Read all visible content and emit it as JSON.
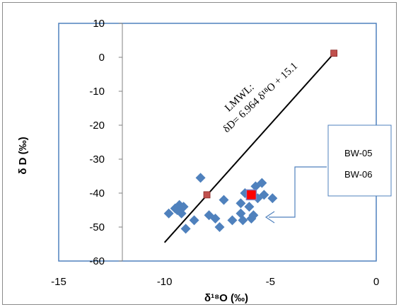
{
  "chart_data": {
    "type": "scatter",
    "title": "",
    "xlabel": "δ¹⁸O (‰)",
    "ylabel": "δ D (‰)",
    "xlim": [
      -15,
      0
    ],
    "ylim": [
      -60,
      10
    ],
    "x_ticks": [
      "-15",
      "-10",
      "-5",
      "0"
    ],
    "y_ticks": [
      "10",
      "0",
      "-10",
      "-20",
      "-30",
      "-40",
      "-50",
      "-60"
    ],
    "grid": false,
    "series": [
      {
        "marker": "diamond",
        "color": "#4f81bd",
        "points": [
          [
            -9.8,
            -46
          ],
          [
            -9.5,
            -44.5
          ],
          [
            -9.4,
            -45
          ],
          [
            -9.3,
            -43.5
          ],
          [
            -9.2,
            -46
          ],
          [
            -9.1,
            -44
          ],
          [
            -9.0,
            -50.5
          ],
          [
            -8.6,
            -48
          ],
          [
            -8.3,
            -35.5
          ],
          [
            -7.9,
            -46.5
          ],
          [
            -7.6,
            -47.5
          ],
          [
            -7.4,
            -50
          ],
          [
            -7.2,
            -42
          ],
          [
            -6.8,
            -48
          ],
          [
            -6.4,
            -43
          ],
          [
            -6.4,
            -46
          ],
          [
            -6.3,
            -48
          ],
          [
            -6.2,
            -40
          ],
          [
            -6.0,
            -44
          ],
          [
            -5.9,
            -47.5
          ],
          [
            -5.8,
            -46.5
          ],
          [
            -5.7,
            -38
          ],
          [
            -5.6,
            -41.5
          ],
          [
            -5.4,
            -37
          ],
          [
            -5.3,
            -40.5
          ],
          [
            -4.9,
            -41.5
          ]
        ]
      },
      {
        "name": "BW-05",
        "marker": "square",
        "color": "#c0504d",
        "points": [
          [
            -8.0,
            -40.5
          ],
          [
            -2.0,
            1.2
          ]
        ]
      },
      {
        "name": "BW-06",
        "marker": "square",
        "color": "#ff0000",
        "points": [
          [
            -5.9,
            -40.5
          ]
        ]
      }
    ],
    "lmwl": {
      "label": "LMWL:",
      "equation": "δD= 6.964 δ¹⁸O + 15.1",
      "slope": 6.964,
      "intercept": 15.1,
      "x_range": [
        -10,
        -2
      ]
    },
    "legend": {
      "placement": "right",
      "entries": [
        "BW-05",
        "BW-06"
      ]
    },
    "colors": {
      "plot_border": "#4f81bd",
      "callout": "#4f81bd",
      "line": "#000000"
    }
  }
}
